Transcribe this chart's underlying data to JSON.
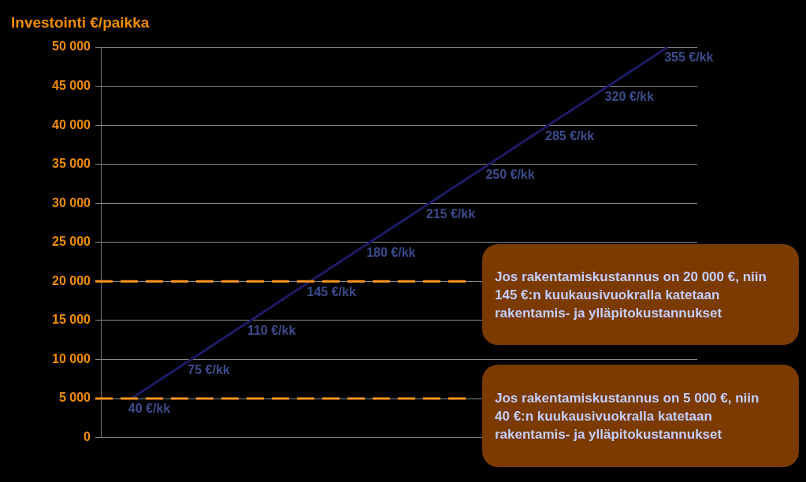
{
  "chart_data": {
    "type": "line",
    "ylabel": "Investointi €/paikka",
    "categories": [
      null,
      null,
      null,
      null,
      null,
      null,
      null,
      null,
      null,
      null
    ],
    "series": [
      {
        "color": "#1c1c66",
        "values": [
          5000,
          10000,
          15000,
          20000,
          25000,
          30000,
          35000,
          40000,
          45000,
          50000
        ]
      }
    ],
    "ylim": [
      0,
      50000
    ],
    "yticks": [
      0,
      {
        "value": 5000,
        "label": "5 000"
      },
      {
        "value": 10000,
        "label": "10 000"
      },
      {
        "value": 15000,
        "label": "15 000"
      },
      {
        "value": 20000,
        "label": "20 000"
      },
      {
        "value": 25000,
        "label": "25 000"
      },
      {
        "value": 30000,
        "label": "30 000"
      },
      {
        "value": 35000,
        "label": "35 000"
      },
      {
        "value": 40000,
        "label": "40 000"
      },
      {
        "value": 45000,
        "label": "45 000"
      },
      {
        "value": 50000,
        "label": "50 000"
      }
    ],
    "grid": "y",
    "legend": false,
    "marker": "none",
    "line_style": "solid",
    "ref_lines": [
      {
        "axis": "y",
        "value": 5000,
        "color": "#f7931e",
        "line_style": "dashed"
      },
      {
        "axis": "y",
        "value": 20000,
        "color": "#f7931e",
        "line_style": "dashed"
      }
    ],
    "annotations": [
      "40 €/kk",
      "75 €/kk",
      "110 €/kk",
      "145 €/kk",
      "180 €/kk",
      "215 €/kk",
      "250 €/kk",
      "285 €/kk",
      "320 €/kk",
      "355 €/kk",
      "Jos rakentamiskustannus on  20 000 €, niin 145 €:n kuukausivuokralla katetaan rakentamis- ja ylläpitokustannukset",
      "Jos rakentamiskustannus on  5 000 €, niin 40 €:n kuukausivuokralla katetaan rakentamis- ja ylläpitokustannukset"
    ]
  }
}
